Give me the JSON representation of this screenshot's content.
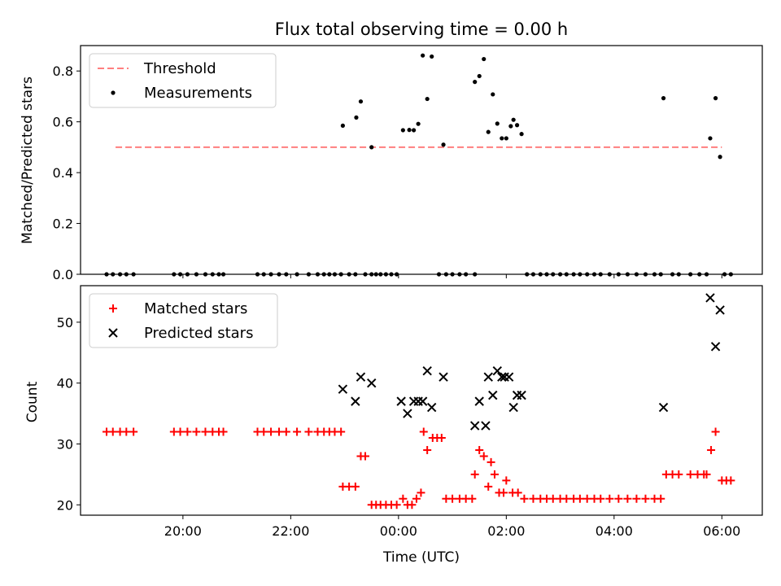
{
  "chart_data": [
    {
      "type": "scatter",
      "title": "Flux total observing time = 0.00 h",
      "xlabel": "",
      "ylabel": "Matched/Predicted stars",
      "ylim": [
        0,
        0.9
      ],
      "yticks": [
        "0.0",
        "0.2",
        "0.4",
        "0.6",
        "0.8"
      ],
      "legend_position": "top-left",
      "series": [
        {
          "name": "Threshold",
          "style": "dashed-line",
          "color": "#ff7f7f",
          "x": [
            "18:45",
            "06:00"
          ],
          "y": [
            0.5,
            0.5
          ]
        },
        {
          "name": "Measurements",
          "style": "dot",
          "color": "#000000",
          "points": [
            [
              "18:35",
              0
            ],
            [
              "18:42",
              0
            ],
            [
              "18:50",
              0
            ],
            [
              "18:57",
              0
            ],
            [
              "19:05",
              0
            ],
            [
              "19:50",
              0
            ],
            [
              "19:57",
              0
            ],
            [
              "20:05",
              0
            ],
            [
              "20:15",
              0
            ],
            [
              "20:25",
              0
            ],
            [
              "20:33",
              0
            ],
            [
              "20:40",
              0
            ],
            [
              "20:45",
              0
            ],
            [
              "21:23",
              0
            ],
            [
              "21:30",
              0
            ],
            [
              "21:38",
              0
            ],
            [
              "21:47",
              0
            ],
            [
              "21:55",
              0
            ],
            [
              "22:07",
              0
            ],
            [
              "22:20",
              0
            ],
            [
              "22:30",
              0
            ],
            [
              "22:37",
              0
            ],
            [
              "22:43",
              0
            ],
            [
              "22:49",
              0
            ],
            [
              "22:56",
              0
            ],
            [
              "23:05",
              0
            ],
            [
              "23:12",
              0
            ],
            [
              "23:23",
              0
            ],
            [
              "23:30",
              0
            ],
            [
              "23:35",
              0
            ],
            [
              "23:40",
              0
            ],
            [
              "23:46",
              0
            ],
            [
              "23:52",
              0
            ],
            [
              "23:58",
              0
            ],
            [
              "00:45",
              0
            ],
            [
              "00:53",
              0
            ],
            [
              "01:00",
              0
            ],
            [
              "01:08",
              0
            ],
            [
              "01:15",
              0
            ],
            [
              "01:25",
              0
            ],
            [
              "02:23",
              0
            ],
            [
              "02:30",
              0
            ],
            [
              "02:38",
              0
            ],
            [
              "02:45",
              0
            ],
            [
              "02:52",
              0
            ],
            [
              "03:00",
              0
            ],
            [
              "03:07",
              0
            ],
            [
              "03:15",
              0
            ],
            [
              "03:22",
              0
            ],
            [
              "03:30",
              0
            ],
            [
              "03:38",
              0
            ],
            [
              "03:45",
              0
            ],
            [
              "03:55",
              0
            ],
            [
              "04:05",
              0
            ],
            [
              "04:15",
              0
            ],
            [
              "04:25",
              0
            ],
            [
              "04:35",
              0
            ],
            [
              "04:45",
              0
            ],
            [
              "04:52",
              0
            ],
            [
              "05:05",
              0
            ],
            [
              "05:12",
              0
            ],
            [
              "05:25",
              0
            ],
            [
              "05:35",
              0
            ],
            [
              "05:43",
              0
            ],
            [
              "06:03",
              0
            ],
            [
              "06:10",
              0
            ],
            [
              "22:58",
              0.585
            ],
            [
              "23:13",
              0.617
            ],
            [
              "23:18",
              0.68
            ],
            [
              "23:30",
              0.5
            ],
            [
              "00:05",
              0.567
            ],
            [
              "00:12",
              0.568
            ],
            [
              "00:17",
              0.567
            ],
            [
              "00:22",
              0.592
            ],
            [
              "00:27",
              0.861
            ],
            [
              "00:32",
              0.69
            ],
            [
              "00:37",
              0.857
            ],
            [
              "00:50",
              0.51
            ],
            [
              "01:25",
              0.757
            ],
            [
              "01:30",
              0.78
            ],
            [
              "01:35",
              0.847
            ],
            [
              "01:40",
              0.56
            ],
            [
              "01:45",
              0.708
            ],
            [
              "01:50",
              0.593
            ],
            [
              "01:55",
              0.535
            ],
            [
              "02:00",
              0.535
            ],
            [
              "02:05",
              0.583
            ],
            [
              "02:08",
              0.608
            ],
            [
              "02:12",
              0.587
            ],
            [
              "02:17",
              0.552
            ],
            [
              "04:55",
              0.693
            ],
            [
              "05:47",
              0.535
            ],
            [
              "05:53",
              0.693
            ],
            [
              "05:58",
              0.462
            ]
          ]
        }
      ]
    },
    {
      "type": "scatter",
      "title": "",
      "xlabel": "Time (UTC)",
      "ylabel": "Count",
      "ylim": [
        18.3,
        56
      ],
      "yticks": [
        "20",
        "30",
        "40",
        "50"
      ],
      "xticks": [
        "20:00",
        "22:00",
        "00:00",
        "02:00",
        "04:00",
        "06:00"
      ],
      "legend_position": "top-left",
      "series": [
        {
          "name": "Matched stars",
          "style": "plus",
          "color": "#ff0000",
          "points": [
            [
              "18:35",
              32
            ],
            [
              "18:42",
              32
            ],
            [
              "18:50",
              32
            ],
            [
              "18:57",
              32
            ],
            [
              "19:05",
              32
            ],
            [
              "19:50",
              32
            ],
            [
              "19:57",
              32
            ],
            [
              "20:05",
              32
            ],
            [
              "20:15",
              32
            ],
            [
              "20:25",
              32
            ],
            [
              "20:33",
              32
            ],
            [
              "20:40",
              32
            ],
            [
              "20:45",
              32
            ],
            [
              "21:23",
              32
            ],
            [
              "21:30",
              32
            ],
            [
              "21:38",
              32
            ],
            [
              "21:47",
              32
            ],
            [
              "21:55",
              32
            ],
            [
              "22:07",
              32
            ],
            [
              "22:20",
              32
            ],
            [
              "22:30",
              32
            ],
            [
              "22:37",
              32
            ],
            [
              "22:43",
              32
            ],
            [
              "22:49",
              32
            ],
            [
              "22:56",
              32
            ],
            [
              "22:58",
              23
            ],
            [
              "23:05",
              23
            ],
            [
              "23:12",
              23
            ],
            [
              "23:18",
              28
            ],
            [
              "23:23",
              28
            ],
            [
              "23:30",
              20
            ],
            [
              "23:35",
              20
            ],
            [
              "23:40",
              20
            ],
            [
              "23:46",
              20
            ],
            [
              "23:52",
              20
            ],
            [
              "23:58",
              20
            ],
            [
              "00:05",
              21
            ],
            [
              "00:10",
              20
            ],
            [
              "00:15",
              20
            ],
            [
              "00:20",
              21
            ],
            [
              "00:25",
              22
            ],
            [
              "00:28",
              32
            ],
            [
              "00:32",
              29
            ],
            [
              "00:38",
              31
            ],
            [
              "00:43",
              31
            ],
            [
              "00:48",
              31
            ],
            [
              "00:53",
              21
            ],
            [
              "01:00",
              21
            ],
            [
              "01:08",
              21
            ],
            [
              "01:15",
              21
            ],
            [
              "01:22",
              21
            ],
            [
              "01:25",
              25
            ],
            [
              "01:30",
              29
            ],
            [
              "01:35",
              28
            ],
            [
              "01:40",
              23
            ],
            [
              "01:43",
              27
            ],
            [
              "01:47",
              25
            ],
            [
              "01:52",
              22
            ],
            [
              "01:57",
              22
            ],
            [
              "02:00",
              24
            ],
            [
              "02:07",
              22
            ],
            [
              "02:13",
              22
            ],
            [
              "02:20",
              21
            ],
            [
              "02:30",
              21
            ],
            [
              "02:38",
              21
            ],
            [
              "02:45",
              21
            ],
            [
              "02:52",
              21
            ],
            [
              "03:00",
              21
            ],
            [
              "03:07",
              21
            ],
            [
              "03:15",
              21
            ],
            [
              "03:22",
              21
            ],
            [
              "03:30",
              21
            ],
            [
              "03:38",
              21
            ],
            [
              "03:45",
              21
            ],
            [
              "03:55",
              21
            ],
            [
              "04:05",
              21
            ],
            [
              "04:15",
              21
            ],
            [
              "04:25",
              21
            ],
            [
              "04:35",
              21
            ],
            [
              "04:45",
              21
            ],
            [
              "04:52",
              21
            ],
            [
              "04:58",
              25
            ],
            [
              "05:05",
              25
            ],
            [
              "05:12",
              25
            ],
            [
              "05:25",
              25
            ],
            [
              "05:33",
              25
            ],
            [
              "05:40",
              25
            ],
            [
              "05:43",
              25
            ],
            [
              "05:48",
              29
            ],
            [
              "05:53",
              32
            ],
            [
              "06:00",
              24
            ],
            [
              "06:05",
              24
            ],
            [
              "06:10",
              24
            ]
          ]
        },
        {
          "name": "Predicted stars",
          "style": "x",
          "color": "#000000",
          "points": [
            [
              "22:58",
              39
            ],
            [
              "23:12",
              37
            ],
            [
              "23:18",
              41
            ],
            [
              "23:30",
              40
            ],
            [
              "00:03",
              37
            ],
            [
              "00:10",
              35
            ],
            [
              "00:17",
              37
            ],
            [
              "00:22",
              37
            ],
            [
              "00:27",
              37
            ],
            [
              "00:32",
              42
            ],
            [
              "00:37",
              36
            ],
            [
              "00:50",
              41
            ],
            [
              "01:25",
              33
            ],
            [
              "01:30",
              37
            ],
            [
              "01:37",
              33
            ],
            [
              "01:40",
              41
            ],
            [
              "01:45",
              38
            ],
            [
              "01:50",
              42
            ],
            [
              "01:55",
              41
            ],
            [
              "01:58",
              41
            ],
            [
              "02:03",
              41
            ],
            [
              "02:08",
              36
            ],
            [
              "02:12",
              38
            ],
            [
              "02:17",
              38
            ],
            [
              "04:55",
              36
            ],
            [
              "05:47",
              54
            ],
            [
              "05:53",
              46
            ],
            [
              "05:58",
              52
            ]
          ]
        }
      ]
    }
  ]
}
